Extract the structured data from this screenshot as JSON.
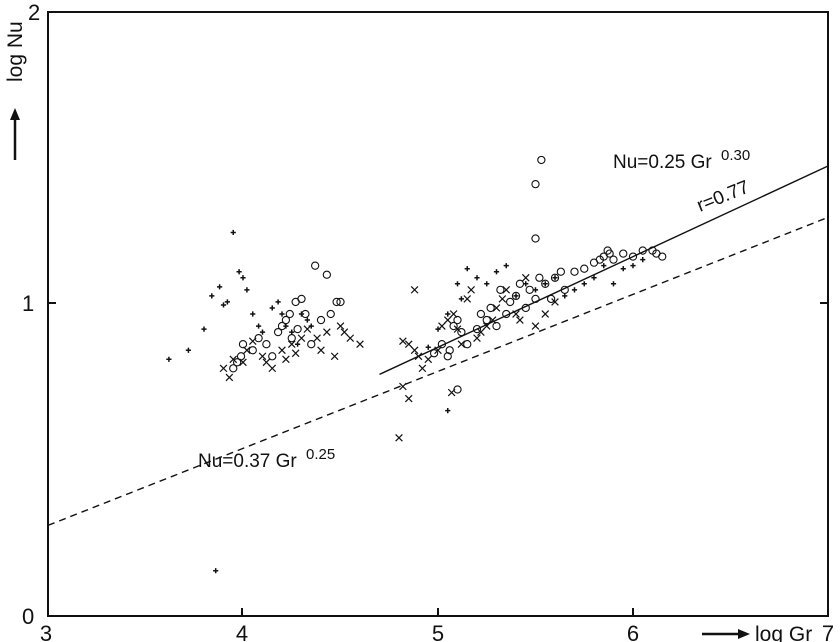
{
  "chart_data": {
    "type": "scatter",
    "xlabel": "log Gr",
    "ylabel": "log Nu",
    "xlim": [
      3,
      7
    ],
    "ylim": [
      0,
      2
    ],
    "x_ticks": [
      "3",
      "4",
      "5",
      "6",
      "7"
    ],
    "y_ticks": [
      "0",
      "1",
      "2"
    ],
    "grid": false,
    "series": [
      {
        "marker": "circle",
        "points": [
          [
            3.95,
            0.82
          ],
          [
            3.97,
            0.84
          ],
          [
            3.99,
            0.86
          ],
          [
            4.0,
            0.9
          ],
          [
            4.05,
            0.88
          ],
          [
            4.08,
            0.92
          ],
          [
            4.12,
            0.9
          ],
          [
            4.15,
            0.86
          ],
          [
            4.18,
            0.94
          ],
          [
            4.2,
            0.96
          ],
          [
            4.22,
            0.98
          ],
          [
            4.24,
            1.0
          ],
          [
            4.25,
            0.92
          ],
          [
            4.27,
            1.04
          ],
          [
            4.28,
            0.95
          ],
          [
            4.3,
            1.05
          ],
          [
            4.32,
            1.0
          ],
          [
            4.35,
            0.9
          ],
          [
            4.37,
            1.16
          ],
          [
            4.4,
            0.98
          ],
          [
            4.43,
            1.13
          ],
          [
            4.45,
            1.0
          ],
          [
            4.48,
            1.04
          ],
          [
            4.5,
            1.04
          ],
          [
            4.98,
            0.87
          ],
          [
            5.02,
            0.9
          ],
          [
            5.05,
            0.86
          ],
          [
            5.06,
            0.88
          ],
          [
            5.08,
            0.96
          ],
          [
            5.1,
            0.98
          ],
          [
            5.12,
            0.94
          ],
          [
            5.15,
            0.9
          ],
          [
            5.1,
            0.75
          ],
          [
            5.2,
            0.95
          ],
          [
            5.22,
            1.0
          ],
          [
            5.25,
            0.98
          ],
          [
            5.27,
            1.02
          ],
          [
            5.3,
            0.96
          ],
          [
            5.32,
            1.08
          ],
          [
            5.35,
            1.0
          ],
          [
            5.37,
            1.04
          ],
          [
            5.4,
            1.06
          ],
          [
            5.42,
            1.1
          ],
          [
            5.45,
            1.02
          ],
          [
            5.47,
            1.08
          ],
          [
            5.5,
            1.05
          ],
          [
            5.52,
            1.12
          ],
          [
            5.55,
            1.1
          ],
          [
            5.58,
            1.05
          ],
          [
            5.6,
            1.12
          ],
          [
            5.63,
            1.14
          ],
          [
            5.65,
            1.08
          ],
          [
            5.7,
            1.14
          ],
          [
            5.75,
            1.15
          ],
          [
            5.8,
            1.17
          ],
          [
            5.83,
            1.18
          ],
          [
            5.85,
            1.19
          ],
          [
            5.87,
            1.21
          ],
          [
            5.88,
            1.2
          ],
          [
            5.9,
            1.18
          ],
          [
            5.95,
            1.2
          ],
          [
            6.0,
            1.19
          ],
          [
            6.05,
            1.21
          ],
          [
            6.1,
            1.21
          ],
          [
            6.12,
            1.2
          ],
          [
            6.15,
            1.19
          ],
          [
            5.5,
            1.25
          ],
          [
            5.5,
            1.43
          ],
          [
            5.53,
            1.51
          ]
        ]
      },
      {
        "marker": "x",
        "points": [
          [
            3.9,
            0.82
          ],
          [
            3.93,
            0.79
          ],
          [
            3.95,
            0.85
          ],
          [
            4.0,
            0.84
          ],
          [
            4.02,
            0.88
          ],
          [
            4.05,
            0.91
          ],
          [
            4.1,
            0.86
          ],
          [
            4.12,
            0.84
          ],
          [
            4.15,
            0.82
          ],
          [
            4.2,
            0.88
          ],
          [
            4.22,
            0.85
          ],
          [
            4.25,
            0.9
          ],
          [
            4.27,
            0.87
          ],
          [
            4.3,
            0.92
          ],
          [
            4.33,
            0.95
          ],
          [
            4.38,
            0.92
          ],
          [
            4.4,
            0.88
          ],
          [
            4.43,
            0.94
          ],
          [
            4.47,
            0.86
          ],
          [
            4.5,
            0.96
          ],
          [
            4.52,
            0.94
          ],
          [
            4.55,
            0.92
          ],
          [
            4.6,
            0.9
          ],
          [
            4.82,
            0.91
          ],
          [
            4.85,
            0.9
          ],
          [
            4.88,
            0.88
          ],
          [
            4.9,
            0.86
          ],
          [
            4.82,
            0.76
          ],
          [
            4.85,
            0.72
          ],
          [
            4.92,
            0.82
          ],
          [
            4.95,
            0.85
          ],
          [
            5.0,
            0.88
          ],
          [
            5.02,
            0.96
          ],
          [
            5.05,
            0.98
          ],
          [
            5.08,
            1.0
          ],
          [
            5.1,
            0.95
          ],
          [
            5.12,
            0.9
          ],
          [
            5.15,
            1.05
          ],
          [
            5.17,
            1.08
          ],
          [
            5.2,
            0.92
          ],
          [
            5.22,
            0.94
          ],
          [
            5.25,
            0.96
          ],
          [
            5.28,
            0.98
          ],
          [
            5.3,
            1.02
          ],
          [
            5.33,
            1.05
          ],
          [
            5.35,
            1.08
          ],
          [
            5.4,
            1.0
          ],
          [
            5.42,
            0.98
          ],
          [
            5.45,
            1.12
          ],
          [
            5.5,
            0.96
          ],
          [
            5.55,
            1.0
          ],
          [
            5.6,
            1.04
          ],
          [
            4.8,
            0.59
          ],
          [
            4.88,
            1.08
          ],
          [
            5.07,
            0.74
          ]
        ]
      },
      {
        "marker": "plus",
        "points": [
          [
            3.62,
            0.85
          ],
          [
            3.72,
            0.88
          ],
          [
            3.8,
            0.95
          ],
          [
            3.84,
            1.06
          ],
          [
            3.88,
            1.09
          ],
          [
            3.9,
            1.03
          ],
          [
            3.92,
            1.04
          ],
          [
            3.95,
            1.27
          ],
          [
            3.98,
            1.14
          ],
          [
            4.0,
            1.12
          ],
          [
            4.02,
            1.08
          ],
          [
            4.05,
            1.0
          ],
          [
            4.08,
            0.96
          ],
          [
            4.1,
            0.94
          ],
          [
            4.15,
            1.02
          ],
          [
            4.18,
            1.04
          ],
          [
            4.2,
            1.0
          ],
          [
            4.22,
            0.96
          ],
          [
            4.25,
            0.94
          ],
          [
            4.28,
            0.9
          ],
          [
            4.3,
            1.0
          ],
          [
            4.33,
            0.98
          ],
          [
            4.35,
            0.96
          ],
          [
            4.95,
            0.89
          ],
          [
            5.0,
            0.95
          ],
          [
            5.05,
            1.0
          ],
          [
            5.1,
            1.1
          ],
          [
            5.12,
            1.05
          ],
          [
            5.15,
            1.15
          ],
          [
            5.2,
            1.12
          ],
          [
            5.25,
            1.1
          ],
          [
            5.3,
            1.14
          ],
          [
            5.35,
            1.16
          ],
          [
            5.4,
            1.06
          ],
          [
            5.45,
            1.1
          ],
          [
            5.5,
            1.08
          ],
          [
            5.55,
            1.1
          ],
          [
            5.6,
            1.12
          ],
          [
            5.65,
            1.06
          ],
          [
            5.7,
            1.08
          ],
          [
            5.75,
            1.1
          ],
          [
            5.8,
            1.12
          ],
          [
            5.85,
            1.16
          ],
          [
            5.9,
            1.1
          ],
          [
            5.95,
            1.15
          ],
          [
            6.0,
            1.16
          ],
          [
            6.05,
            1.18
          ],
          [
            5.05,
            0.68
          ],
          [
            3.86,
            0.15
          ]
        ]
      }
    ],
    "lines": [
      {
        "style": "solid",
        "x": [
          4.7,
          7.0
        ],
        "y": [
          0.8,
          1.49
        ]
      },
      {
        "style": "dashed",
        "x": [
          3.0,
          7.0
        ],
        "y": [
          0.3,
          1.32
        ]
      }
    ],
    "annotations": {
      "solid_fit_base": "Nu=0.25 Gr",
      "solid_fit_exp": "0.30",
      "correlation": "r=0.77",
      "dashed_fit_base": "Nu=0.37 Gr",
      "dashed_fit_exp": "0.25"
    }
  }
}
